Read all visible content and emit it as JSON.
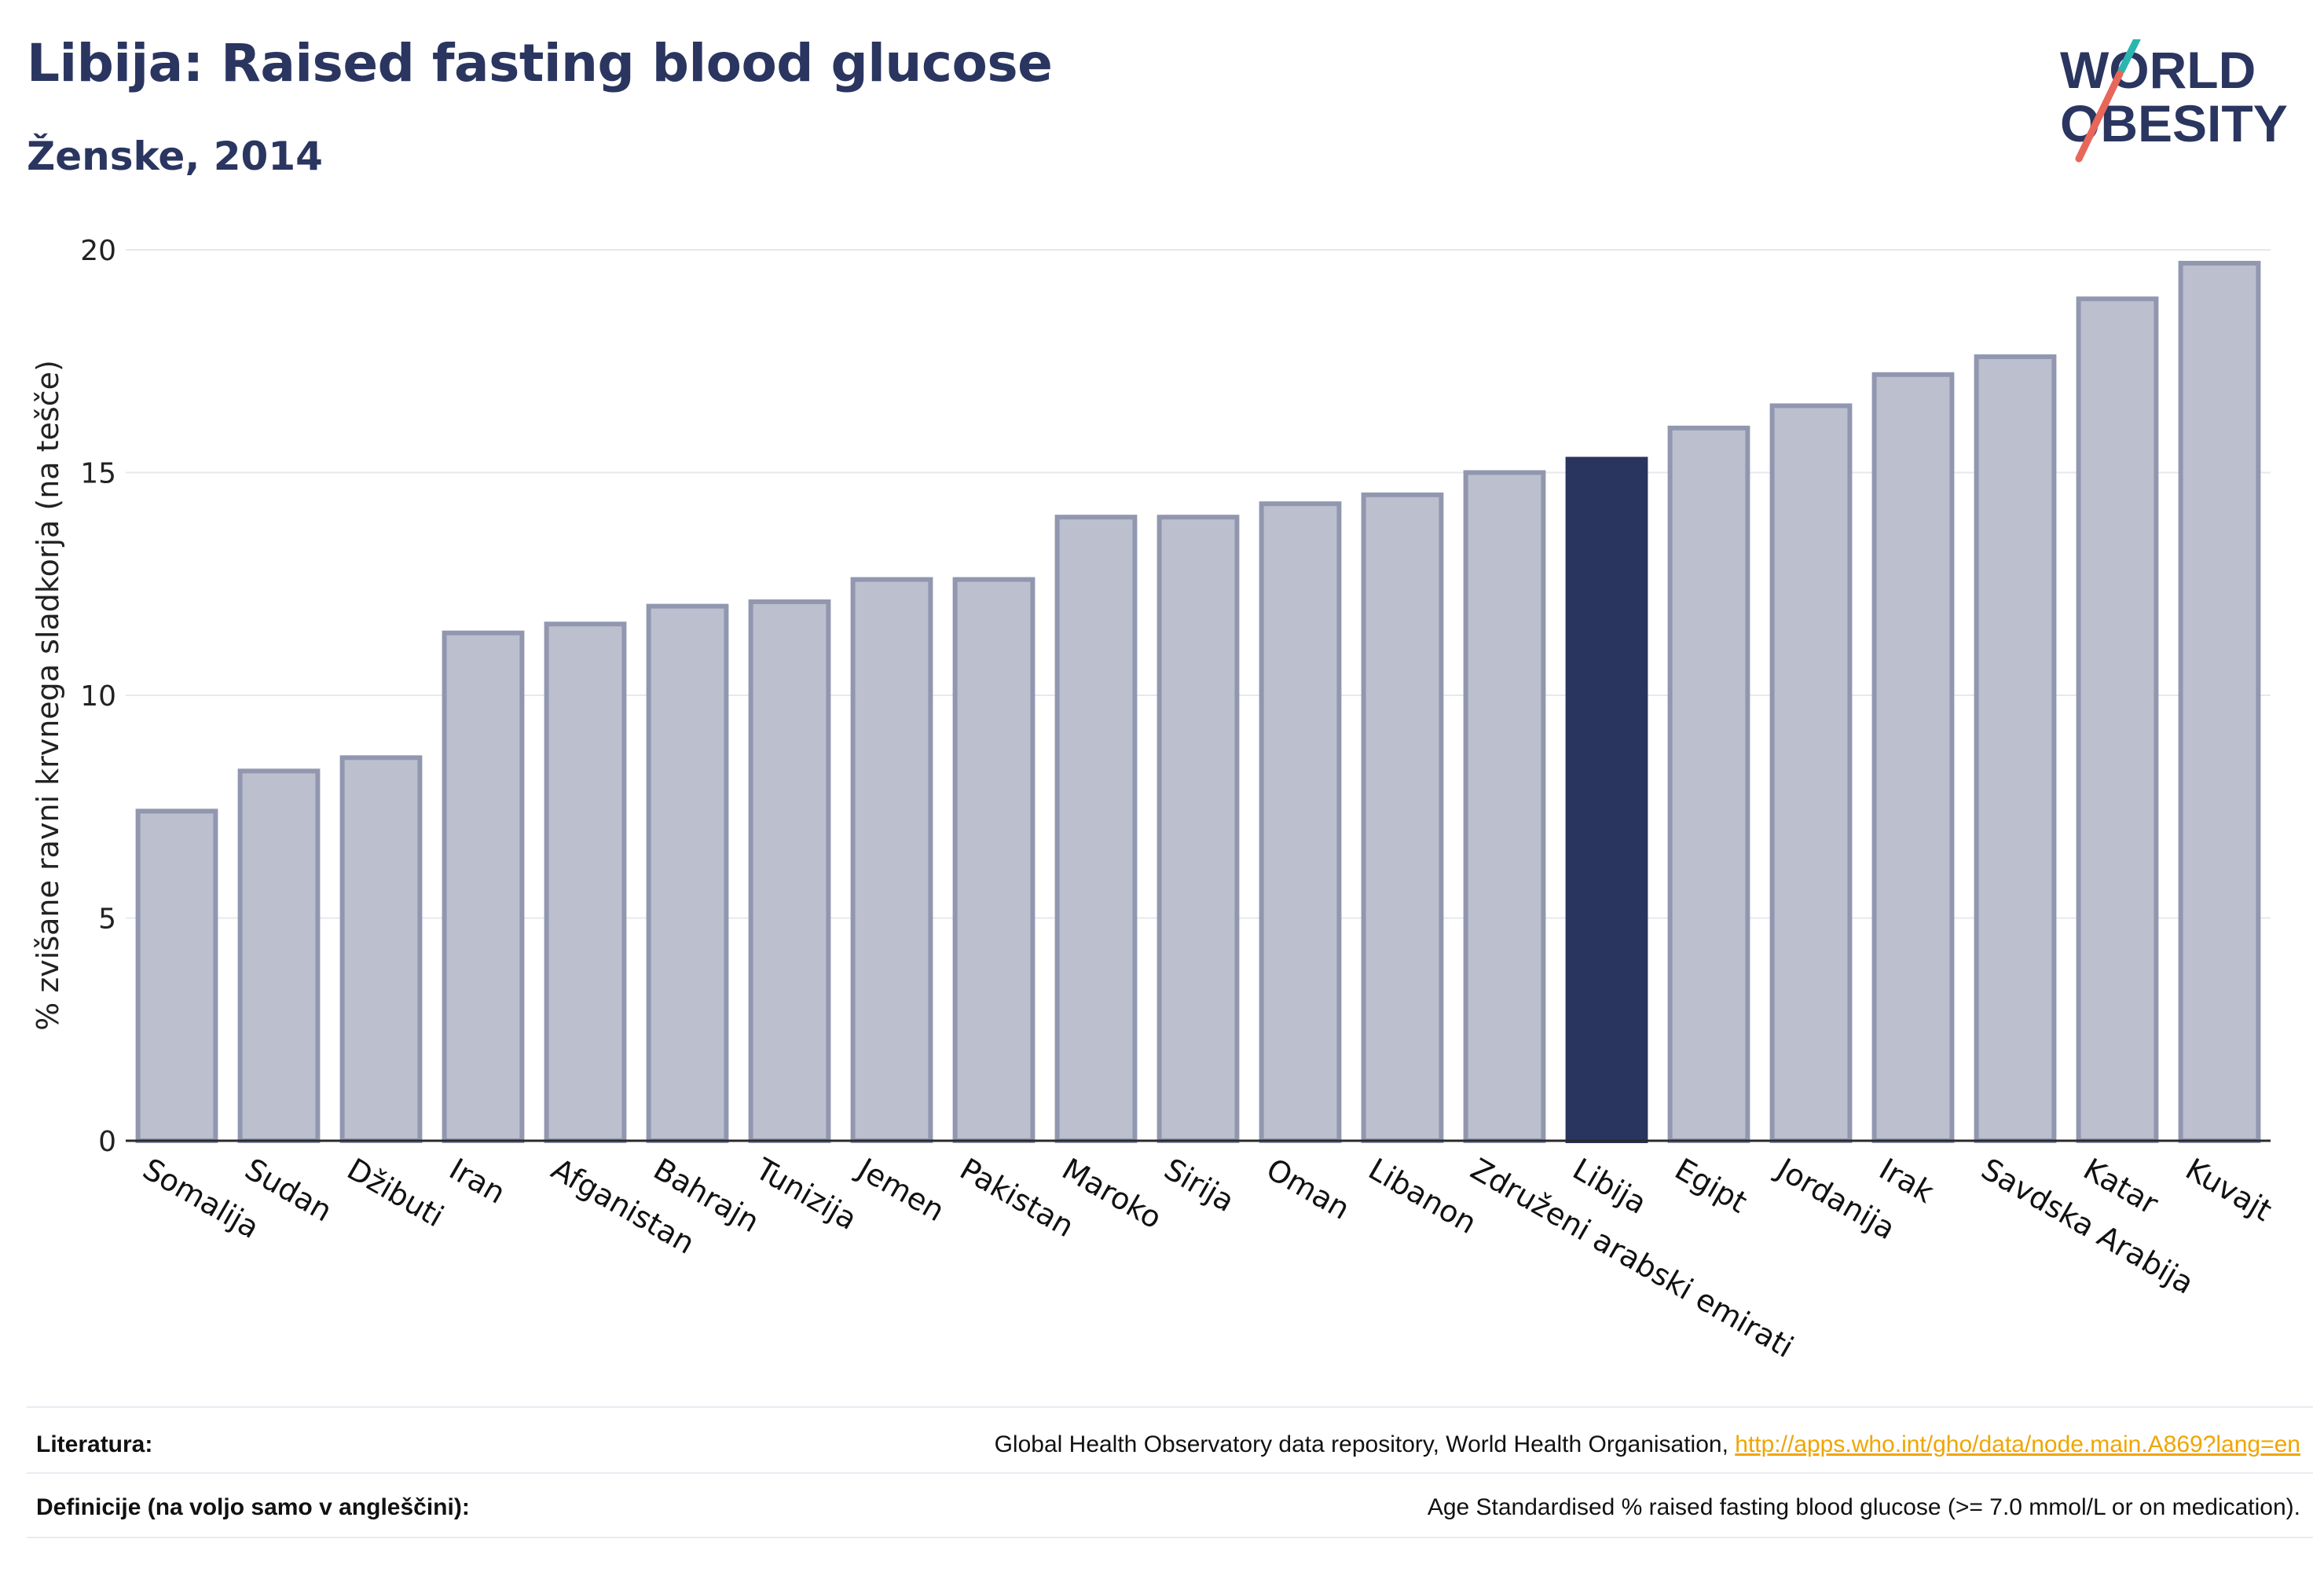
{
  "header": {
    "title": "Libija: Raised fasting blood glucose",
    "subtitle": "Ženske, 2014"
  },
  "logo": {
    "line1": "WORLD",
    "line2": "OBESITY",
    "colors": {
      "text": "#2a3560",
      "teal": "#2bb5b0",
      "coral": "#e8675a"
    }
  },
  "chart_data": {
    "type": "bar",
    "ylabel": "% zvišane ravni krvnega sladkorja (na tešče)",
    "xlabel": "",
    "ylim": [
      0,
      20
    ],
    "yticks": [
      0,
      5,
      10,
      15,
      20
    ],
    "grid": true,
    "highlight": "Libija",
    "colors": {
      "bar": "#bcc0ce",
      "bar_edge": "#9297b0",
      "highlight": "#29345f"
    },
    "categories": [
      "Somalija",
      "Sudan",
      "Džibuti",
      "Iran",
      "Afganistan",
      "Bahrajn",
      "Tunizija",
      "Jemen",
      "Pakistan",
      "Maroko",
      "Sirija",
      "Oman",
      "Libanon",
      "Združeni arabski emirati",
      "Libija",
      "Egipt",
      "Jordanija",
      "Irak",
      "Savdska Arabija",
      "Katar",
      "Kuvajt"
    ],
    "values": [
      7.4,
      8.3,
      8.6,
      11.4,
      11.6,
      12.0,
      12.1,
      12.6,
      12.6,
      14.0,
      14.0,
      14.3,
      14.5,
      15.0,
      15.3,
      16.0,
      16.5,
      17.2,
      17.6,
      18.9,
      19.7
    ]
  },
  "footer": {
    "references_label": "Literatura:",
    "references_text": "Global Health Observatory data repository, World Health Organisation, ",
    "references_link": "http://apps.who.int/gho/data/node.main.A869?lang=en",
    "definitions_label": "Definicije (na voljo samo v angleščini):",
    "definitions_text": "Age Standardised % raised fasting blood glucose (>= 7.0 mmol/L or on medication)."
  }
}
